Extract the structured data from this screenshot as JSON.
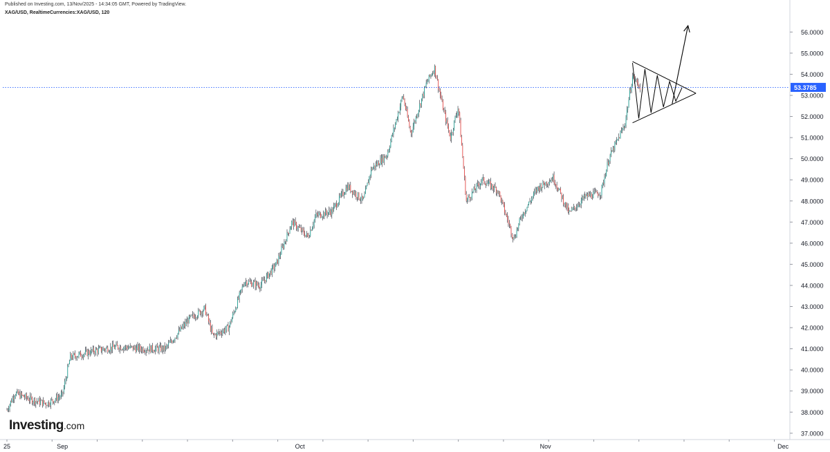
{
  "header": {
    "published": "Published on Investing.com, 13/Nov/2025 - 14:34:05 GMT, Powered by TradingView.",
    "symbol": "XAG/USD, RealtimeCurrencies:XAG/USD, 120"
  },
  "logo": {
    "brand": "Investing",
    "suffix": ".com"
  },
  "colors": {
    "up": "#26a69a",
    "down": "#ef5350",
    "price_line": "#2962ff",
    "badge": "#2962ff",
    "axis": "#d1d4dc",
    "drawing": "#000000"
  },
  "chart_data": {
    "type": "candlestick",
    "symbol": "XAG/USD",
    "interval": "120",
    "ylim": [
      36.7,
      56.6
    ],
    "y_ticks": [
      "56.0000",
      "55.0000",
      "54.0000",
      "53.0000",
      "52.0000",
      "51.0000",
      "50.0000",
      "49.0000",
      "48.0000",
      "47.0000",
      "46.0000",
      "45.0000",
      "44.0000",
      "43.0000",
      "42.0000",
      "41.0000",
      "40.0000",
      "39.0000",
      "38.0000",
      "37.0000"
    ],
    "x_labels": [
      {
        "label": "25",
        "date": "2025-08-25"
      },
      {
        "label": "Sep",
        "date": "2025-09-01"
      },
      {
        "label": "Oct",
        "date": "2025-10-01"
      },
      {
        "label": "Nov",
        "date": "2025-11-01"
      },
      {
        "label": "Dec",
        "date": "2025-12-01"
      }
    ],
    "last_price": "53.3785",
    "last_price_value": 53.3785,
    "price_path": [
      {
        "date": "2025-08-25",
        "price": 38.1
      },
      {
        "date": "2025-08-26",
        "price": 38.9
      },
      {
        "date": "2025-08-28",
        "price": 38.6
      },
      {
        "date": "2025-08-30",
        "price": 38.4
      },
      {
        "date": "2025-09-01",
        "price": 38.8
      },
      {
        "date": "2025-09-02",
        "price": 40.6
      },
      {
        "date": "2025-09-05",
        "price": 40.9
      },
      {
        "date": "2025-09-08",
        "price": 41.1
      },
      {
        "date": "2025-09-11",
        "price": 41.0
      },
      {
        "date": "2025-09-14",
        "price": 41.0
      },
      {
        "date": "2025-09-17",
        "price": 42.4
      },
      {
        "date": "2025-09-19",
        "price": 42.9
      },
      {
        "date": "2025-09-20",
        "price": 41.6
      },
      {
        "date": "2025-09-22",
        "price": 42.0
      },
      {
        "date": "2025-09-24",
        "price": 44.2
      },
      {
        "date": "2025-09-26",
        "price": 44.0
      },
      {
        "date": "2025-09-28",
        "price": 45.0
      },
      {
        "date": "2025-09-30",
        "price": 47.0
      },
      {
        "date": "2025-10-02",
        "price": 46.3
      },
      {
        "date": "2025-10-03",
        "price": 47.3
      },
      {
        "date": "2025-10-05",
        "price": 47.5
      },
      {
        "date": "2025-10-07",
        "price": 48.7
      },
      {
        "date": "2025-10-09",
        "price": 48.0
      },
      {
        "date": "2025-10-10",
        "price": 49.5
      },
      {
        "date": "2025-10-12",
        "price": 50.2
      },
      {
        "date": "2025-10-14",
        "price": 53.0
      },
      {
        "date": "2025-10-15",
        "price": 51.2
      },
      {
        "date": "2025-10-17",
        "price": 53.6
      },
      {
        "date": "2025-10-18",
        "price": 54.3
      },
      {
        "date": "2025-10-19",
        "price": 52.5
      },
      {
        "date": "2025-10-20",
        "price": 51.0
      },
      {
        "date": "2025-10-21",
        "price": 52.5
      },
      {
        "date": "2025-10-22",
        "price": 48.0
      },
      {
        "date": "2025-10-24",
        "price": 49.0
      },
      {
        "date": "2025-10-26",
        "price": 48.5
      },
      {
        "date": "2025-10-28",
        "price": 46.2
      },
      {
        "date": "2025-10-29",
        "price": 47.3
      },
      {
        "date": "2025-10-31",
        "price": 48.6
      },
      {
        "date": "2025-11-02",
        "price": 49.1
      },
      {
        "date": "2025-11-04",
        "price": 47.4
      },
      {
        "date": "2025-11-06",
        "price": 48.2
      },
      {
        "date": "2025-11-08",
        "price": 48.4
      },
      {
        "date": "2025-11-09",
        "price": 50.0
      },
      {
        "date": "2025-11-11",
        "price": 51.6
      },
      {
        "date": "2025-11-12",
        "price": 53.9
      },
      {
        "date": "2025-11-13",
        "price": 53.38
      }
    ],
    "annotations": [
      {
        "type": "symmetrical-triangle",
        "apex_date": "2025-11-20",
        "apex_price": 53.1,
        "upper_start": {
          "date": "2025-11-12",
          "price": 54.6
        },
        "lower_start": {
          "date": "2025-11-12",
          "price": 51.7
        }
      },
      {
        "type": "breakout-arrow",
        "from": {
          "date": "2025-11-17",
          "price": 52.6
        },
        "to": {
          "date": "2025-11-19",
          "price": 56.3
        }
      }
    ],
    "grid": false,
    "legend": "none"
  }
}
